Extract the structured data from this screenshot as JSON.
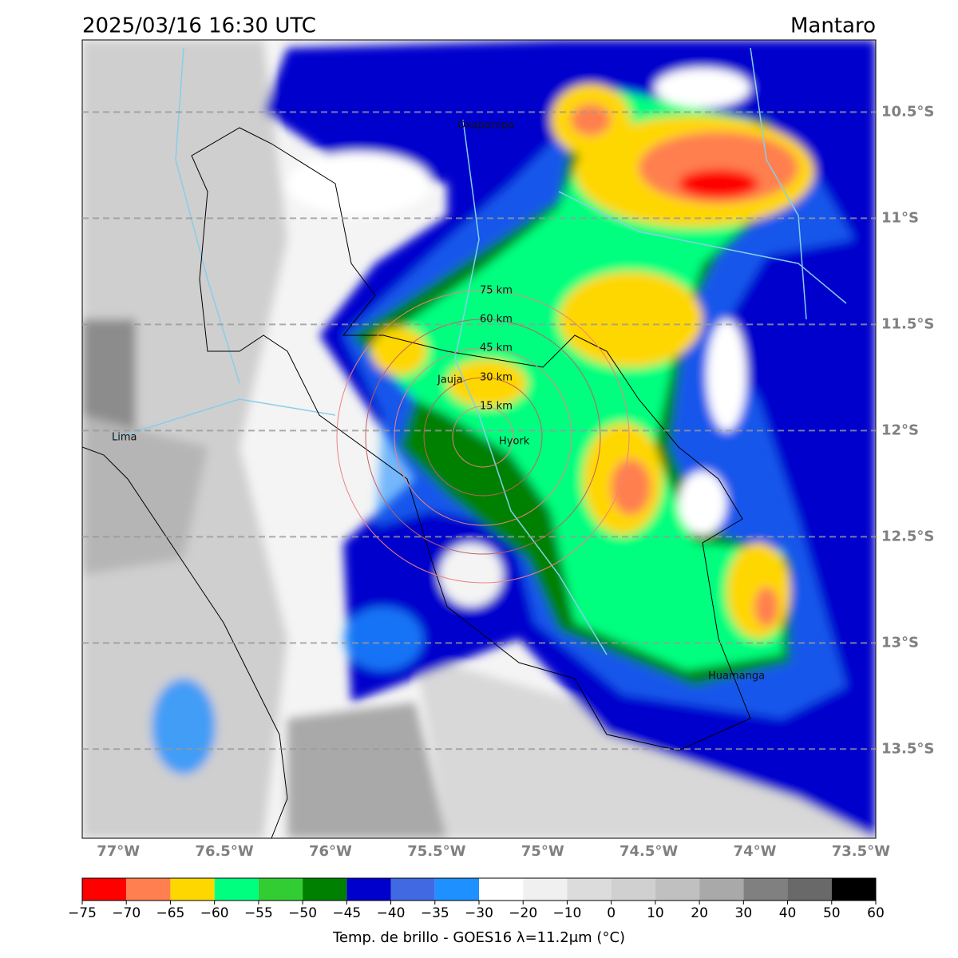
{
  "chart_data": {
    "type": "map",
    "title": "2025/03/16 16:30 UTC",
    "subtitle": "Mantaro",
    "xlim": [
      -77.17,
      -73.43
    ],
    "ylim": [
      -13.92,
      -10.16
    ],
    "xticks": [
      {
        "value": -77,
        "label": "77°W"
      },
      {
        "value": -76.5,
        "label": "76.5°W"
      },
      {
        "value": -76,
        "label": "76°W"
      },
      {
        "value": -75.5,
        "label": "75.5°W"
      },
      {
        "value": -75,
        "label": "75°W"
      },
      {
        "value": -74.5,
        "label": "74.5°W"
      },
      {
        "value": -74,
        "label": "74°W"
      },
      {
        "value": -73.5,
        "label": "73.5°W"
      }
    ],
    "yticks": [
      {
        "value": -10.5,
        "label": "10.5°S"
      },
      {
        "value": -11,
        "label": "11°S"
      },
      {
        "value": -11.5,
        "label": "11.5°S"
      },
      {
        "value": -12,
        "label": "12°S"
      },
      {
        "value": -12.5,
        "label": "12.5°S"
      },
      {
        "value": -13,
        "label": "13°S"
      },
      {
        "value": -13.5,
        "label": "13.5°S"
      }
    ],
    "grid": true,
    "places": [
      "Oxapampa",
      "Jauja",
      "Lima",
      "Hyork",
      "Huamanga"
    ],
    "rings": [
      "75 km",
      "60 km",
      "45 km",
      "30 km",
      "15 km"
    ],
    "colorbar": {
      "label": "Temp. de brillo - GOES16 λ=11.2μm (°C)",
      "ticks": [
        {
          "value": -75,
          "label": "−75"
        },
        {
          "value": -70,
          "label": "−70"
        },
        {
          "value": -65,
          "label": "−65"
        },
        {
          "value": -60,
          "label": "−60"
        },
        {
          "value": -55,
          "label": "−55"
        },
        {
          "value": -50,
          "label": "−50"
        },
        {
          "value": -45,
          "label": "−45"
        },
        {
          "value": -40,
          "label": "−40"
        },
        {
          "value": -35,
          "label": "−35"
        },
        {
          "value": -30,
          "label": "−30"
        },
        {
          "value": -20,
          "label": "−20"
        },
        {
          "value": -10,
          "label": "−10"
        },
        0,
        10,
        20,
        30,
        40,
        50,
        60
      ],
      "colors": [
        "#ff0000",
        "#ff7f50",
        "#ffd700",
        "#00ff7f",
        "#32cd32",
        "#008000",
        "#0000cd",
        "#4169e1",
        "#1e90ff",
        "#ffffff",
        "#f0f0f0",
        "#dcdcdc",
        "#d0d0d0",
        "#c0c0c0",
        "#a9a9a9",
        "#808080",
        "#696969",
        "#000000"
      ]
    }
  }
}
